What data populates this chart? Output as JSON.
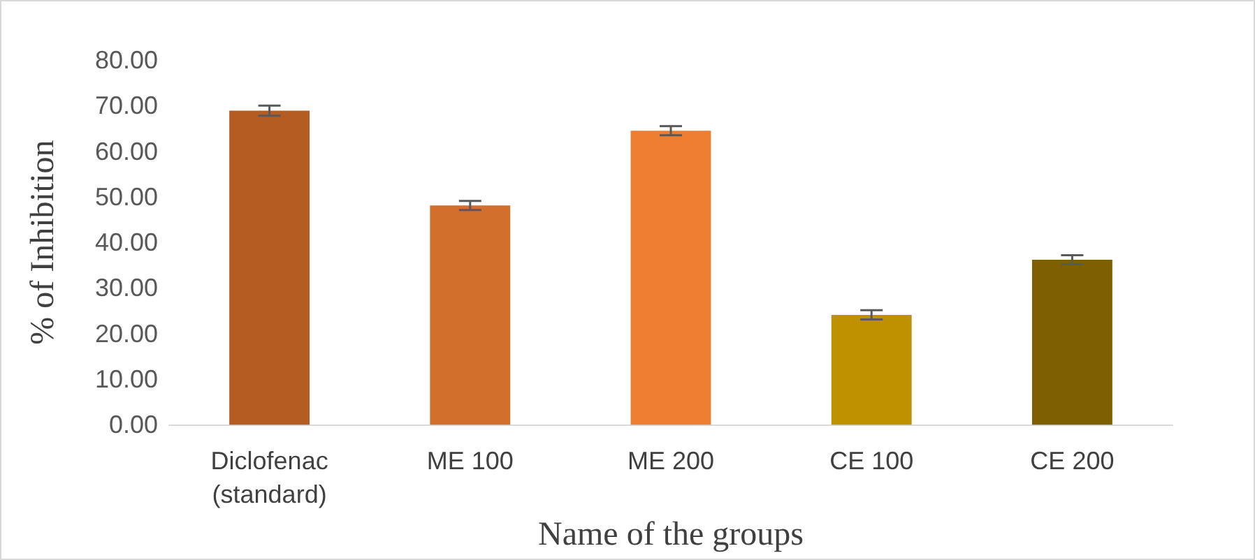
{
  "chart_data": {
    "type": "bar",
    "categories": [
      "Diclofenac\n(standard)",
      "ME 100",
      "ME 200",
      "CE 100",
      "CE 200"
    ],
    "values": [
      68.9,
      48.1,
      64.5,
      24.1,
      36.2
    ],
    "errors": [
      1.1,
      1.0,
      1.0,
      1.0,
      1.0
    ],
    "colors": [
      "#b45c22",
      "#d26f2c",
      "#ed7d31",
      "#bf9000",
      "#7f6000"
    ],
    "xlabel": "Name of the groups",
    "ylabel": "% of Inhibition",
    "ylim": [
      0,
      80
    ],
    "yticks": [
      {
        "value": 0,
        "label": "0.00"
      },
      {
        "value": 10,
        "label": "10.00"
      },
      {
        "value": 20,
        "label": "20.00"
      },
      {
        "value": 30,
        "label": "30.00"
      },
      {
        "value": 40,
        "label": "40.00"
      },
      {
        "value": 50,
        "label": "50.00"
      },
      {
        "value": 60,
        "label": "60.00"
      },
      {
        "value": 70,
        "label": "70.00"
      },
      {
        "value": 80,
        "label": "80.00"
      }
    ]
  }
}
